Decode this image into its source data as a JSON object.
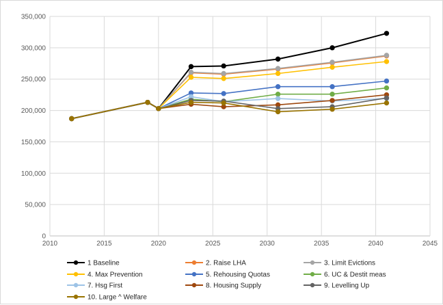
{
  "chart_data": {
    "type": "line",
    "title": "",
    "xlabel": "",
    "ylabel": "",
    "xlim": [
      2010,
      2045
    ],
    "ylim": [
      0,
      350000
    ],
    "x_ticks": [
      "2010",
      "2015",
      "2020",
      "2025",
      "2030",
      "2035",
      "2040",
      "2045"
    ],
    "y_ticks": [
      "0",
      "50,000",
      "100,000",
      "150,000",
      "200,000",
      "250,000",
      "300,000",
      "350,000"
    ],
    "grid": "both",
    "legend_position": "bottom",
    "x": [
      2012,
      2019,
      2020,
      2023,
      2026,
      2031,
      2036,
      2041
    ],
    "series": [
      {
        "name": "1 Baseline",
        "color": "#000000",
        "values": [
          187000,
          213000,
          203000,
          270000,
          271000,
          282000,
          300000,
          323000
        ]
      },
      {
        "name": "2. Raise LHA",
        "color": "#ed7d31",
        "values": [
          187000,
          213000,
          203000,
          260000,
          258000,
          266000,
          276000,
          287000
        ]
      },
      {
        "name": "3. Limit Evictions",
        "color": "#a5a5a5",
        "values": [
          187000,
          213000,
          203000,
          261000,
          259000,
          267000,
          277000,
          288000
        ]
      },
      {
        "name": "4. Max Prevention",
        "color": "#ffc000",
        "values": [
          187000,
          213000,
          203000,
          253000,
          251000,
          259000,
          269000,
          278000
        ]
      },
      {
        "name": "5. Rehousing Quotas",
        "color": "#4472c4",
        "values": [
          187000,
          213000,
          203000,
          228000,
          227000,
          238000,
          238000,
          247000
        ]
      },
      {
        "name": "6. UC & Destit meas",
        "color": "#70ad47",
        "values": [
          187000,
          213000,
          203000,
          218000,
          214000,
          226000,
          226000,
          236000
        ]
      },
      {
        "name": "7. Hsg First",
        "color": "#9dc3e6",
        "values": [
          187000,
          213000,
          203000,
          222000,
          214000,
          219000,
          215000,
          219000
        ]
      },
      {
        "name": "8. Housing Supply",
        "color": "#9e480e",
        "values": [
          187000,
          213000,
          203000,
          210000,
          206000,
          209000,
          216000,
          225000
        ]
      },
      {
        "name": "9. Levelling Up",
        "color": "#636363",
        "values": [
          187000,
          213000,
          203000,
          216000,
          215000,
          203000,
          206000,
          220000
        ]
      },
      {
        "name": "10. Large ^ Welfare",
        "color": "#997300",
        "values": [
          187000,
          213000,
          203000,
          213000,
          212000,
          198000,
          202000,
          212000
        ]
      }
    ]
  }
}
